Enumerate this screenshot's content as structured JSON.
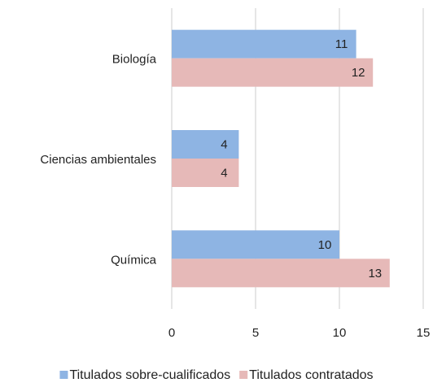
{
  "chart_data": {
    "type": "hbar",
    "categories": [
      "Biología",
      "Ciencias ambientales",
      "Química"
    ],
    "series": [
      {
        "name": "Titulados sobre-cualificados",
        "color": "#8eb4e3",
        "values": [
          11,
          4,
          10
        ]
      },
      {
        "name": "Titulados contratados",
        "color": "#e6b9b8",
        "values": [
          12,
          4,
          13
        ]
      }
    ],
    "xlim": [
      0,
      15
    ],
    "xticks": [
      0,
      5,
      10,
      15
    ],
    "grid": true,
    "legend": "bottom"
  }
}
